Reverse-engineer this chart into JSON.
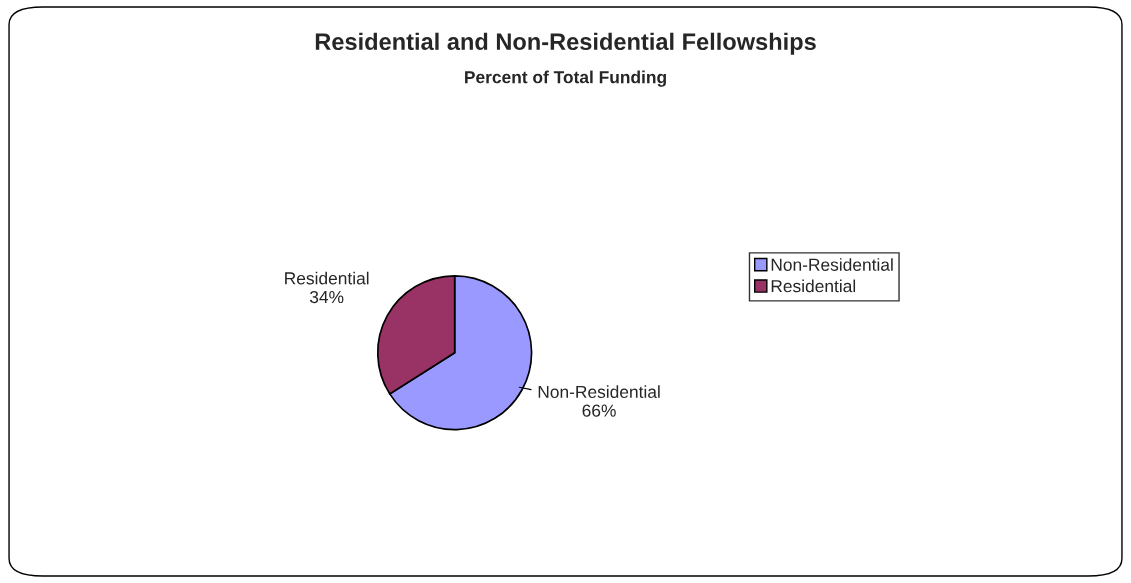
{
  "chart_data": {
    "type": "pie",
    "title": "Residential and Non-Residential Fellowships",
    "subtitle": "Percent of Total Funding",
    "categories": [
      "Non-Residential",
      "Residential"
    ],
    "values": [
      66,
      34
    ],
    "colors": [
      "#9999ff",
      "#993366"
    ],
    "value_labels": [
      "66%",
      "34%"
    ],
    "legend": "right"
  }
}
